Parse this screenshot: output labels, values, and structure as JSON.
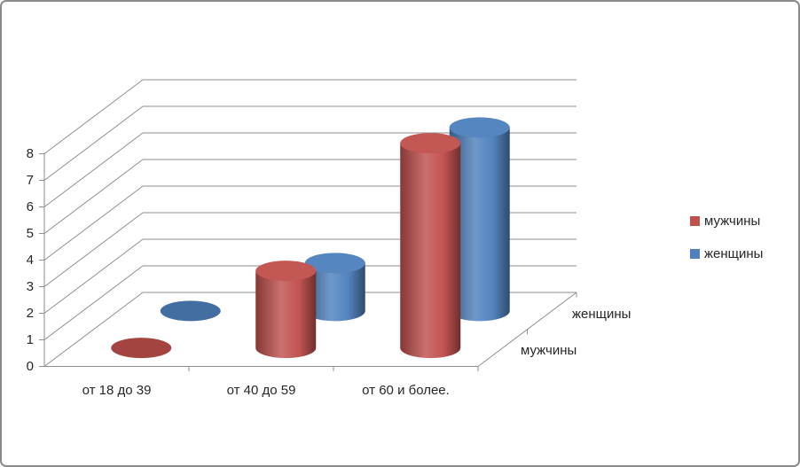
{
  "chart_data": {
    "type": "bar",
    "subtype": "3d-cylinder",
    "title": "",
    "categories": [
      "от 18 до 39",
      "от 40 до 59",
      "от 60 и более."
    ],
    "series": [
      {
        "name": "мужчины",
        "color": "#C0504D",
        "values": [
          0,
          2.9,
          7.7
        ]
      },
      {
        "name": "женщины",
        "color": "#4F81BD",
        "values": [
          0,
          1.8,
          6.9
        ]
      }
    ],
    "value_axis": {
      "min": 0,
      "max": 8,
      "step": 1,
      "tick_labels": [
        "0",
        "1",
        "2",
        "3",
        "4",
        "5",
        "6",
        "7",
        "8"
      ]
    },
    "category_axis_labels": [
      "от 18 до 39",
      "от 40 до 59",
      "от 60 и более."
    ],
    "depth_axis_labels": [
      "мужчины",
      "женщины"
    ],
    "legend": {
      "position": "right",
      "entries": [
        {
          "label": "мужчины",
          "color": "#C0504D"
        },
        {
          "label": "женщины",
          "color": "#4F81BD"
        }
      ]
    },
    "grid": true,
    "colors": {
      "grid": "#8E8E8E",
      "text": "#262626",
      "background": "#FFFFFF",
      "frame_border": "#8A8A8A"
    }
  }
}
